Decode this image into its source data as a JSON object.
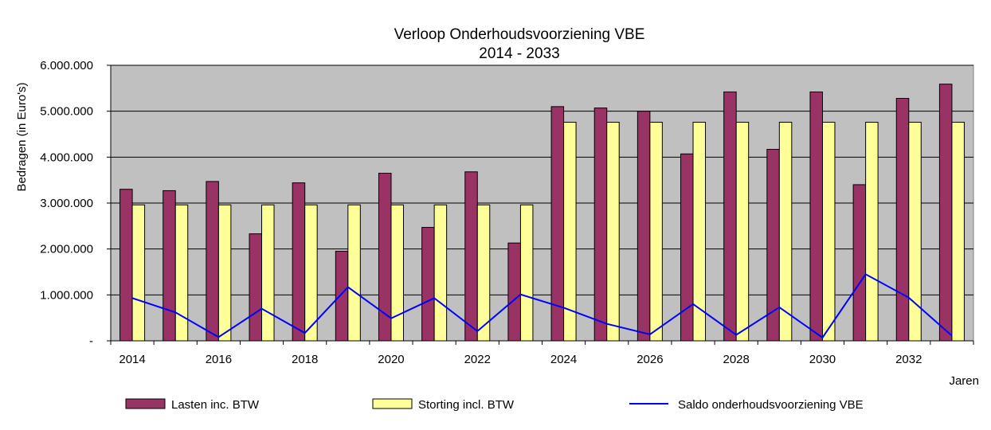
{
  "chart_data": {
    "type": "bar",
    "title": "Verloop Onderhoudsvoorziening VBE",
    "subtitle": "2014 - 2033",
    "xlabel": "Jaren",
    "ylabel": "Bedragen  (in Euro's)",
    "ylim": [
      0,
      6000000
    ],
    "yticks": [
      "-",
      "1.000.000",
      "2.000.000",
      "3.000.000",
      "4.000.000",
      "5.000.000",
      "6.000.000"
    ],
    "categories": [
      "2014",
      "2015",
      "2016",
      "2017",
      "2018",
      "2019",
      "2020",
      "2021",
      "2022",
      "2023",
      "2024",
      "2025",
      "2026",
      "2027",
      "2028",
      "2029",
      "2030",
      "2031",
      "2032",
      "2033"
    ],
    "xtick_labels": [
      "2014",
      "",
      "2016",
      "",
      "2018",
      "",
      "2020",
      "",
      "2022",
      "",
      "2024",
      "",
      "2026",
      "",
      "2028",
      "",
      "2030",
      "",
      "2032",
      ""
    ],
    "grid": true,
    "legend_position": "bottom",
    "series": [
      {
        "name": "Lasten inc. BTW",
        "type": "bar",
        "color": "#993366",
        "values": [
          3300000,
          3270000,
          3470000,
          2330000,
          3440000,
          1950000,
          3650000,
          2470000,
          3680000,
          2130000,
          5100000,
          5070000,
          5000000,
          4070000,
          5420000,
          4170000,
          5420000,
          3400000,
          5280000,
          5590000
        ]
      },
      {
        "name": "Storting incl. BTW",
        "type": "bar",
        "color": "#ffff99",
        "values": [
          2960000,
          2960000,
          2960000,
          2960000,
          2960000,
          2960000,
          2960000,
          2960000,
          2960000,
          2960000,
          4760000,
          4760000,
          4760000,
          4760000,
          4760000,
          4760000,
          4760000,
          4760000,
          4760000,
          4760000
        ]
      },
      {
        "name": "Saldo onderhoudsvoorziening VBE",
        "type": "line",
        "color": "#0000ff",
        "values": [
          930000,
          620000,
          80000,
          700000,
          170000,
          1170000,
          490000,
          930000,
          210000,
          1010000,
          720000,
          370000,
          140000,
          800000,
          130000,
          730000,
          70000,
          1450000,
          940000,
          110000
        ]
      }
    ]
  }
}
